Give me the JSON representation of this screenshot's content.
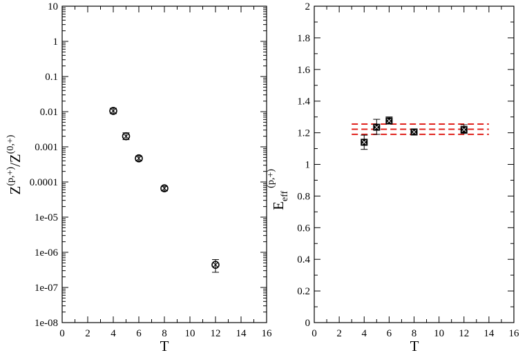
{
  "chart_data": [
    {
      "type": "scatter",
      "xlabel": "T",
      "ylabel": {
        "base": "Z",
        "sup": "(p,+)",
        "mid": "/Z",
        "sup2": "(0,+)"
      },
      "xlim": [
        0,
        16
      ],
      "ylim": [
        1e-08,
        10
      ],
      "yscale": "log",
      "xticks": [
        0,
        2,
        4,
        6,
        8,
        10,
        12,
        14,
        16
      ],
      "yticks": [
        1e-08,
        1e-07,
        1e-06,
        1e-05,
        0.0001,
        0.001,
        0.01,
        0.1,
        1,
        10
      ],
      "ytick_labels": [
        "1e-08",
        "1e-07",
        "1e-06",
        "1e-05",
        "0.0001",
        "0.001",
        "0.01",
        "0.1",
        "1",
        "10"
      ],
      "marker": "circle-x",
      "points": [
        {
          "x": 4,
          "y": 0.0105,
          "ylo": 0.0088,
          "yhi": 0.0125
        },
        {
          "x": 5,
          "y": 0.002,
          "ylo": 0.0016,
          "yhi": 0.0025
        },
        {
          "x": 6,
          "y": 0.00047,
          "ylo": 0.0004,
          "yhi": 0.00055
        },
        {
          "x": 8,
          "y": 6.6e-05,
          "ylo": 5.6e-05,
          "yhi": 7.6e-05
        },
        {
          "x": 12,
          "y": 4.4e-07,
          "ylo": 2.7e-07,
          "yhi": 6.2e-07
        }
      ],
      "grid": false
    },
    {
      "type": "scatter",
      "xlabel": "T",
      "ylabel": {
        "base": "E",
        "sub": "eff",
        "sup": "(p,+)"
      },
      "xlim": [
        0,
        16
      ],
      "ylim": [
        0,
        2
      ],
      "xticks": [
        0,
        2,
        4,
        6,
        8,
        10,
        12,
        14,
        16
      ],
      "yticks": [
        0,
        0.2,
        0.4,
        0.6,
        0.8,
        1,
        1.2,
        1.4,
        1.6,
        1.8,
        2
      ],
      "ytick_labels": [
        "0",
        "0.2",
        "0.4",
        "0.6",
        "0.8",
        "1",
        "1.2",
        "1.4",
        "1.6",
        "1.8",
        "2"
      ],
      "marker": "square-x",
      "points": [
        {
          "x": 4,
          "y": 1.14,
          "ylo": 1.095,
          "yhi": 1.185
        },
        {
          "x": 5,
          "y": 1.235,
          "ylo": 1.19,
          "yhi": 1.285
        },
        {
          "x": 6,
          "y": 1.275,
          "ylo": 1.255,
          "yhi": 1.3
        },
        {
          "x": 8,
          "y": 1.205,
          "ylo": 1.19,
          "yhi": 1.22
        },
        {
          "x": 12,
          "y": 1.22,
          "ylo": 1.195,
          "yhi": 1.25
        }
      ],
      "fit_band": {
        "x_from": 3,
        "x_to": 14,
        "central": 1.222,
        "lower": 1.19,
        "upper": 1.255,
        "color": "#e0201b",
        "style": "dashed"
      },
      "grid": false
    }
  ]
}
